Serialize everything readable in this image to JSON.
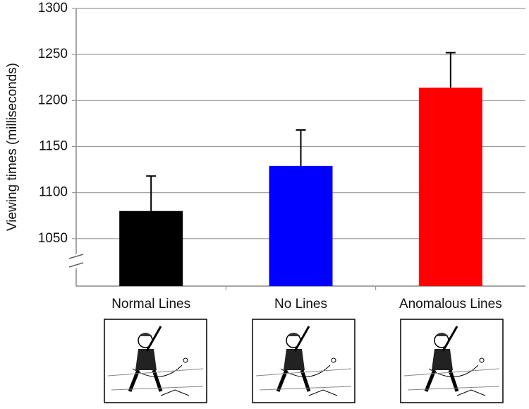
{
  "chart_data": {
    "type": "bar",
    "y_label": "Viewing times (milliseconds)",
    "categories": [
      "Normal Lines",
      "No Lines",
      "Anomalous Lines"
    ],
    "values": [
      1080,
      1129,
      1214
    ],
    "errors": [
      38,
      39,
      38
    ],
    "colors": [
      "#000000",
      "#0000ff",
      "#ff0000"
    ],
    "ylim": [
      1000,
      1300
    ],
    "yticks": [
      1050,
      1100,
      1150,
      1200,
      1250,
      1300
    ],
    "grid": true
  }
}
